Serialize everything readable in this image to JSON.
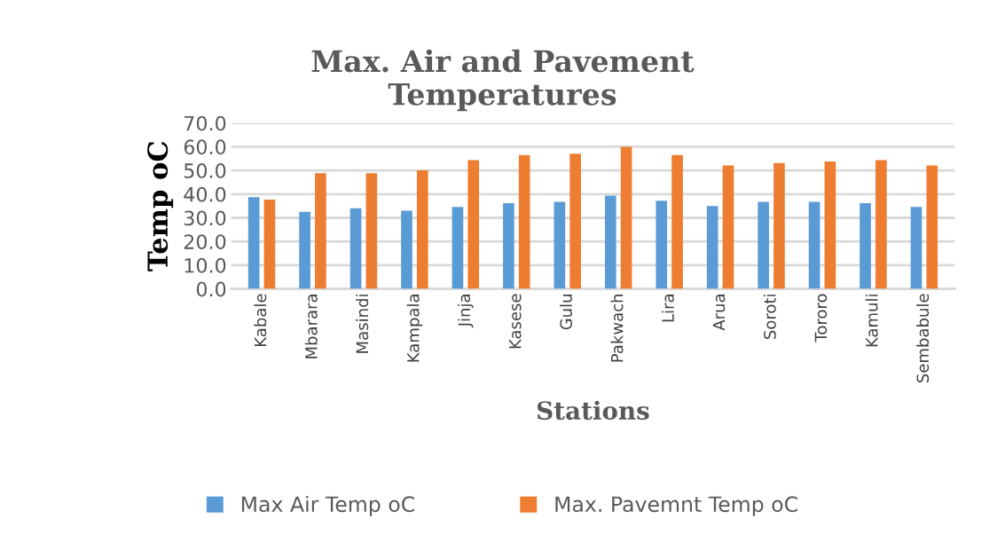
{
  "chart_data": {
    "type": "bar",
    "title": "Max. Air and Pavement\nTemperatures",
    "xlabel": "Stations",
    "ylabel": "Temp oC",
    "categories": [
      "Kabale",
      "Mbarara",
      "Masindi",
      "Kampala",
      "Jinja",
      "Kasese",
      "Gulu",
      "Pakwach",
      "Lira",
      "Arua",
      "Soroti",
      "Tororo",
      "Kamuli",
      "Sembabule"
    ],
    "series": [
      {
        "name": "Max Air Temp oC",
        "color": "#5b9bd5",
        "values": [
          38.7,
          32.5,
          34.0,
          33.0,
          34.6,
          36.2,
          36.7,
          39.4,
          37.2,
          35.0,
          36.7,
          36.7,
          36.2,
          34.6
        ]
      },
      {
        "name": "Max. Pavemnt Temp oC",
        "color": "#ed7d31",
        "values": [
          37.7,
          48.8,
          48.8,
          50.0,
          54.3,
          56.5,
          57.1,
          60.0,
          56.5,
          52.1,
          53.1,
          53.8,
          54.3,
          52.1
        ]
      }
    ],
    "ylim": [
      0,
      70
    ],
    "yticks": [
      {
        "value": 0,
        "label": "0.0"
      },
      {
        "value": 10,
        "label": "10.0"
      },
      {
        "value": 20,
        "label": "20.0"
      },
      {
        "value": 30,
        "label": "30.0"
      },
      {
        "value": 40,
        "label": "40.0"
      },
      {
        "value": 50,
        "label": "50.0"
      },
      {
        "value": 60,
        "label": "60.0"
      },
      {
        "value": 70,
        "label": "70.0"
      }
    ],
    "grid": "y",
    "legend": "bottom"
  }
}
